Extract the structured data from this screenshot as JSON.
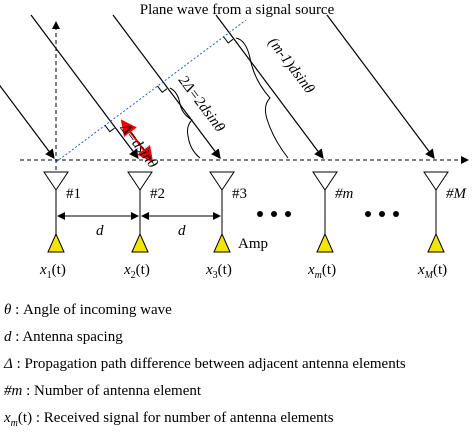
{
  "title": "Plane wave from a signal source",
  "elements": [
    "#1",
    "#2",
    "#3",
    "#m",
    "#M"
  ],
  "spacing_labels": [
    "d",
    "d"
  ],
  "amplifier_label": "Amp",
  "signals": [
    {
      "symbol": "x",
      "subscript": "1",
      "argument": "(t)"
    },
    {
      "symbol": "x",
      "subscript": "2",
      "argument": "(t)"
    },
    {
      "symbol": "x",
      "subscript": "3",
      "argument": "(t)"
    },
    {
      "symbol": "x",
      "subscript": "m",
      "argument": "(t)"
    },
    {
      "symbol": "x",
      "subscript": "M",
      "argument": "(t)"
    }
  ],
  "path_labels": [
    "Δ=dsinθ",
    "2Δ=2dsinθ",
    "(m-1)dsinθ"
  ],
  "legend": [
    {
      "symbol": "θ",
      "description": " : Angle of incoming wave"
    },
    {
      "symbol": "d",
      "description": " : Antenna spacing"
    },
    {
      "symbol": "Δ",
      "description": " : Propagation path difference between adjacent antenna elements"
    },
    {
      "symbol": "#m",
      "description": " : Number of antenna element"
    },
    {
      "symbol": "x",
      "subscript": "m",
      "argument": "(t)",
      "description": " : Received signal for number of antenna elements"
    }
  ]
}
